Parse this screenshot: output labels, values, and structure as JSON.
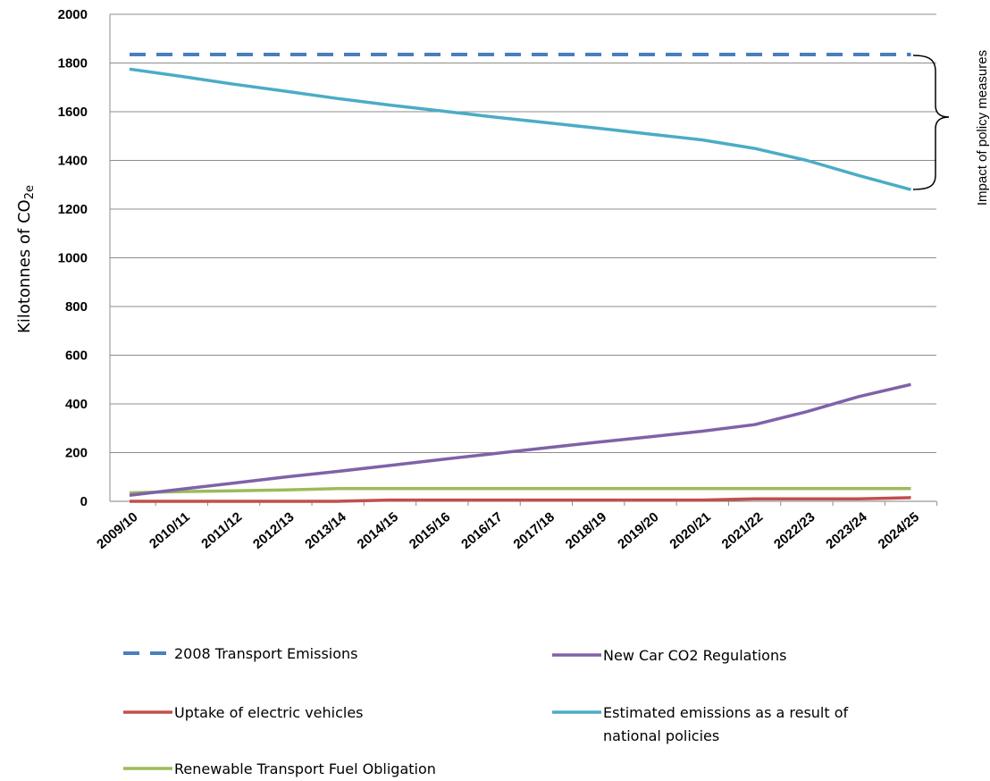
{
  "chart_data": {
    "type": "line",
    "ylabel_main": "Kilotonnes of CO",
    "ylabel_sub": "2e",
    "ylim": [
      0,
      2000
    ],
    "y_ticks": [
      "0",
      "200",
      "400",
      "600",
      "800",
      "1000",
      "1200",
      "1400",
      "1600",
      "1800",
      "2000"
    ],
    "grid": "horizontal",
    "categories": [
      "2009/10",
      "2010/11",
      "2011/12",
      "2012/13",
      "2013/14",
      "2014/15",
      "2015/16",
      "2016/17",
      "2017/18",
      "2018/19",
      "2019/20",
      "2020/21",
      "2021/22",
      "2022/23",
      "2023/24",
      "2024/25"
    ],
    "series": [
      {
        "name": "2008 Transport Emissions",
        "color": "#4a7ebf",
        "dash": true,
        "values": [
          1835,
          1835,
          1835,
          1835,
          1835,
          1835,
          1835,
          1835,
          1835,
          1835,
          1835,
          1835,
          1835,
          1835,
          1835,
          1835
        ]
      },
      {
        "name": "New Car CO2 Regulations",
        "color": "#7f62a8",
        "dash": false,
        "values": [
          25,
          50,
          75,
          100,
          123,
          147,
          172,
          196,
          220,
          243,
          265,
          288,
          315,
          368,
          430,
          480
        ]
      },
      {
        "name": "Uptake of electric vehicles",
        "color": "#c0504d",
        "dash": false,
        "values": [
          0,
          0,
          0,
          0,
          0,
          5,
          5,
          5,
          5,
          5,
          5,
          5,
          10,
          10,
          10,
          15
        ]
      },
      {
        "name": "Estimated emissions as a result of national policies",
        "color": "#4bacc6",
        "dash": false,
        "values": [
          1775,
          1745,
          1713,
          1684,
          1654,
          1627,
          1603,
          1578,
          1555,
          1532,
          1508,
          1484,
          1449,
          1400,
          1338,
          1280
        ]
      },
      {
        "name": "Renewable Transport Fuel Obligation",
        "color": "#9bbb59",
        "dash": false,
        "values": [
          35,
          40,
          43,
          47,
          52,
          52,
          52,
          52,
          52,
          52,
          52,
          52,
          52,
          52,
          52,
          52
        ]
      }
    ],
    "annotation": "Impact of policy measures",
    "legend": {
      "placement": "bottom",
      "line1": "Estimated emissions as a result of",
      "line2": "national policies"
    }
  }
}
